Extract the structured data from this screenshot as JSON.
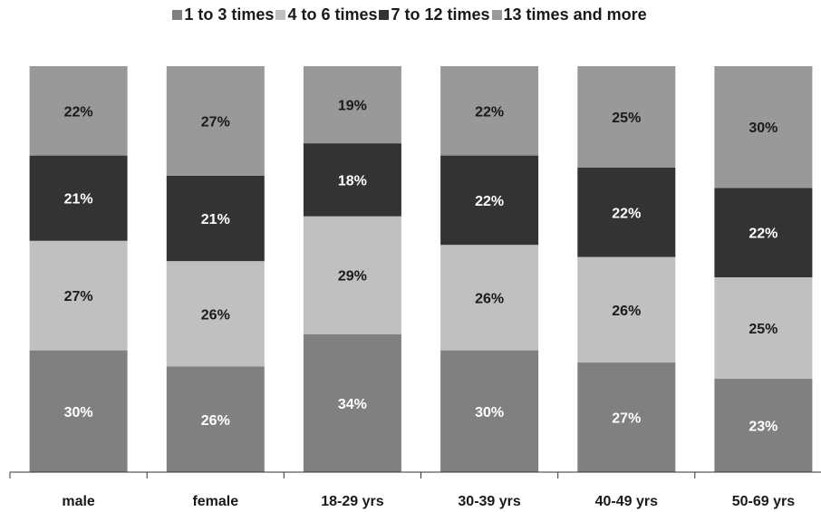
{
  "chart_data": {
    "type": "bar",
    "stacked": true,
    "percent": true,
    "categories": [
      "male",
      "female",
      "18-29 yrs",
      "30-39 yrs",
      "40-49 yrs",
      "50-69 yrs"
    ],
    "series": [
      {
        "name": "1 to 3 times",
        "values": [
          30,
          26,
          34,
          30,
          27,
          23
        ],
        "color": "#808080",
        "label_color": "#ffffff"
      },
      {
        "name": "4 to 6 times",
        "values": [
          27,
          26,
          29,
          26,
          26,
          25
        ],
        "color": "#c0c0c0",
        "label_color": "#1a1a1a"
      },
      {
        "name": "7 to 12 times",
        "values": [
          21,
          21,
          18,
          22,
          22,
          22
        ],
        "color": "#333333",
        "label_color": "#ffffff"
      },
      {
        "name": "13 times and more",
        "values": [
          22,
          27,
          19,
          22,
          25,
          30
        ],
        "color": "#999999",
        "label_color": "#1a1a1a"
      }
    ],
    "data_labels": [
      [
        "30%",
        "26%",
        "34%",
        "30%",
        "27%",
        "23%"
      ],
      [
        "27%",
        "26%",
        "29%",
        "26%",
        "26%",
        "25%"
      ],
      [
        "21%",
        "21%",
        "18%",
        "22%",
        "22%",
        "22%"
      ],
      [
        "22%",
        "27%",
        "19%",
        "22%",
        "25%",
        "30%"
      ]
    ],
    "title": "",
    "xlabel": "",
    "ylabel": "",
    "ylim": [
      0,
      100
    ],
    "grid": false,
    "legend_position": "top"
  }
}
